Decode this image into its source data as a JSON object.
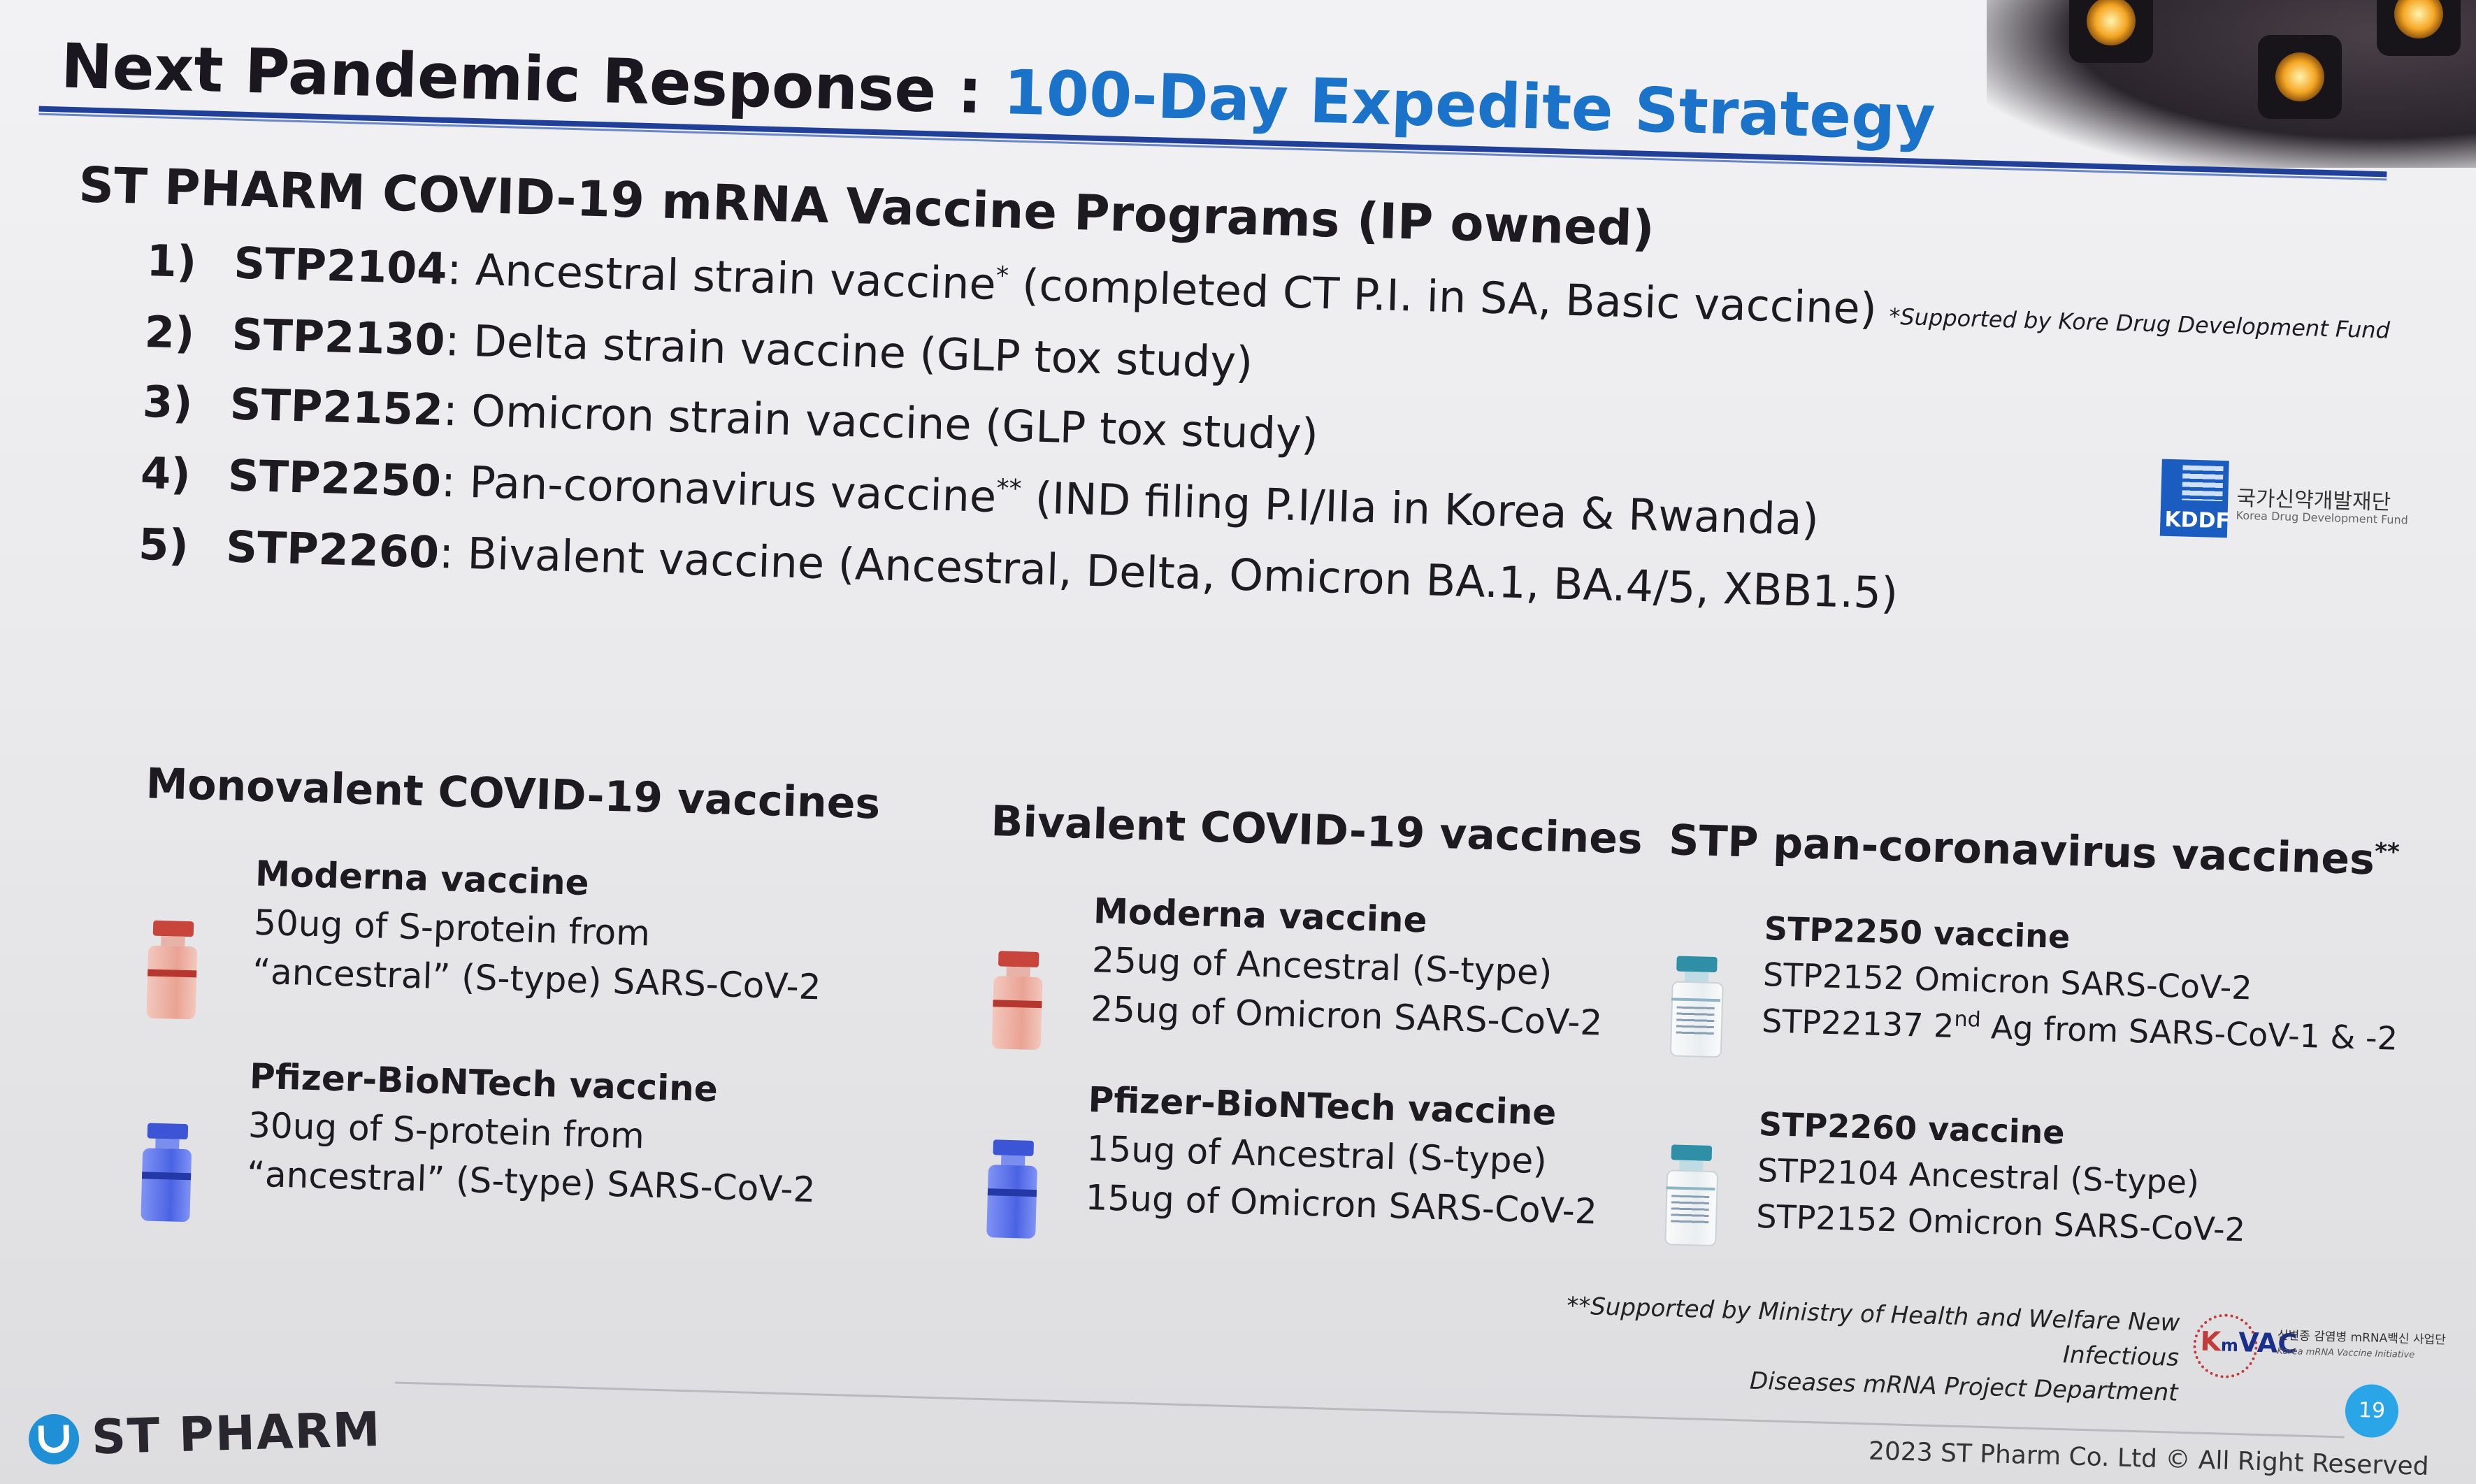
{
  "title": {
    "prefix": "Next Pandemic Response :",
    "highlight": "100-Day Expedite Strategy"
  },
  "programs": {
    "heading": "ST PHARM COVID-19 mRNA Vaccine Programs (IP owned)",
    "items": [
      {
        "num": "1)",
        "code": "STP2104",
        "text": ": Ancestral strain vaccine",
        "sup": "*",
        "rest": " (completed CT P.I. in SA, Basic vaccine)"
      },
      {
        "num": "2)",
        "code": "STP2130",
        "text": ": Delta strain vaccine (GLP tox study)",
        "sup": "",
        "rest": ""
      },
      {
        "num": "3)",
        "code": "STP2152",
        "text": ": Omicron strain vaccine (GLP tox study)",
        "sup": "",
        "rest": ""
      },
      {
        "num": "4)",
        "code": "STP2250",
        "text": ": Pan-coronavirus vaccine",
        "sup": "**",
        "rest": " (IND filing P.I/IIa in Korea & Rwanda)"
      },
      {
        "num": "5)",
        "code": "STP2260",
        "text": ": Bivalent vaccine (Ancestral, Delta, Omicron BA.1, BA.4/5, XBB1.5)",
        "sup": "",
        "rest": ""
      }
    ],
    "footnote": "*Supported by Kore Drug Development Fund"
  },
  "kddf": {
    "abbr": "KDDF",
    "korean": "국가신약개발재단",
    "english": "Korea Drug Development Fund"
  },
  "columns": [
    {
      "heading": "Monovalent COVID-19 vaccines",
      "heading_sup": "",
      "vaccines": [
        {
          "name": "Moderna vaccine",
          "lines": [
            "50ug of S-protein from",
            "“ancestral” (S-type) SARS-CoV-2"
          ],
          "vial": "red"
        },
        {
          "name": "Pfizer-BioNTech vaccine",
          "lines": [
            "30ug of S-protein from",
            "“ancestral” (S-type) SARS-CoV-2"
          ],
          "vial": "blue"
        }
      ]
    },
    {
      "heading": "Bivalent COVID-19 vaccines",
      "heading_sup": "",
      "vaccines": [
        {
          "name": "Moderna vaccine",
          "lines": [
            "25ug of Ancestral (S-type)",
            "25ug of Omicron SARS-CoV-2"
          ],
          "vial": "red"
        },
        {
          "name": "Pfizer-BioNTech vaccine",
          "lines": [
            "15ug of Ancestral (S-type)",
            "15ug of Omicron SARS-CoV-2"
          ],
          "vial": "blue"
        }
      ]
    },
    {
      "heading": "STP pan-coronavirus vaccines",
      "heading_sup": "**",
      "vaccines": [
        {
          "name": "STP2250 vaccine",
          "lines": [
            "STP2152 Omicron SARS-CoV-2"
          ],
          "line2_pre": "STP22137 2",
          "line2_sup": "nd",
          "line2_post": " Ag from SARS-CoV-1 & -2",
          "vial": "stp"
        },
        {
          "name": "STP2260 vaccine",
          "lines": [
            "STP2104 Ancestral (S-type)",
            "STP2152 Omicron SARS-CoV-2"
          ],
          "vial": "stp"
        }
      ]
    }
  ],
  "footnote2": {
    "line1": "**Supported by Ministry of Health and Welfare New Infectious",
    "line2": "Diseases mRNA Project Department"
  },
  "kmvac": {
    "k": "K",
    "m": "m",
    "vac": "VAC",
    "korean": "신변종 감염병 mRNA백신 사업단",
    "english": "Korea mRNA Vaccine Initiative"
  },
  "page_number": "19",
  "copyright": "2023 ST Pharm Co. Ltd © All Right Reserved",
  "logo_text": "ST PHARM",
  "colors": {
    "title_blue": "#1a73c9",
    "rule_blue": "#1f3f99",
    "page_dot": "#2aa6e8",
    "moderna_vial": "#c8453b",
    "pfizer_vial": "#3b55d6"
  }
}
